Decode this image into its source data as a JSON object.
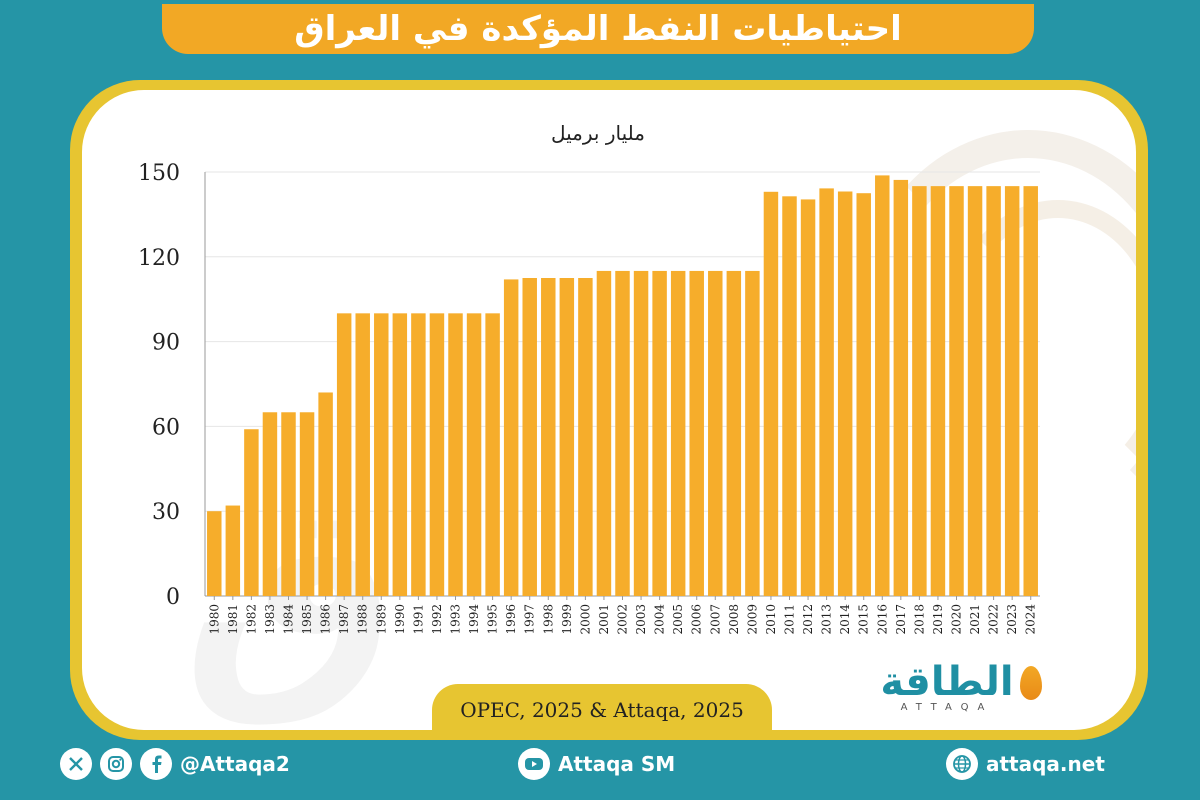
{
  "header": {
    "title": "احتياطيات النفط المؤكدة في العراق"
  },
  "source": "OPEC, 2025 & Attaqa, 2025",
  "logo": {
    "arabic": "الطاقة",
    "latin": "ATTAQA"
  },
  "footer": {
    "social_handle": "@Attaqa2",
    "youtube": "Attaqa SM",
    "website": "attaqa.net"
  },
  "icons": [
    "x-icon",
    "instagram-icon",
    "facebook-icon",
    "youtube-icon",
    "globe-icon"
  ],
  "colors": {
    "background": "#2595a6",
    "bar": "#f6ad2b",
    "header": "#f2a825",
    "frame": "#e7c531"
  },
  "chart_data": {
    "type": "bar",
    "title": "",
    "ylabel": "مليار برميل",
    "xlabel": "",
    "ylim": [
      0,
      150
    ],
    "yticks": [
      0,
      30,
      60,
      90,
      120,
      150
    ],
    "grid": true,
    "categories": [
      "1980",
      "1981",
      "1982",
      "1983",
      "1984",
      "1985",
      "1986",
      "1987",
      "1988",
      "1989",
      "1990",
      "1991",
      "1992",
      "1993",
      "1994",
      "1995",
      "1996",
      "1997",
      "1998",
      "1999",
      "2000",
      "2001",
      "2002",
      "2003",
      "2004",
      "2005",
      "2006",
      "2007",
      "2008",
      "2009",
      "2010",
      "2011",
      "2012",
      "2013",
      "2014",
      "2015",
      "2016",
      "2017",
      "2018",
      "2019",
      "2020",
      "2021",
      "2022",
      "2023",
      "2024"
    ],
    "values": [
      30,
      32,
      59,
      65,
      65,
      65,
      72,
      100,
      100,
      100,
      100,
      100,
      100,
      100,
      100,
      100,
      112,
      112.5,
      112.5,
      112.5,
      112.5,
      115,
      115,
      115,
      115,
      115,
      115,
      115,
      115,
      115,
      143,
      141.4,
      140.3,
      144.2,
      143.1,
      142.5,
      148.8,
      147.2,
      145,
      145,
      145,
      145,
      145,
      145,
      145
    ]
  }
}
